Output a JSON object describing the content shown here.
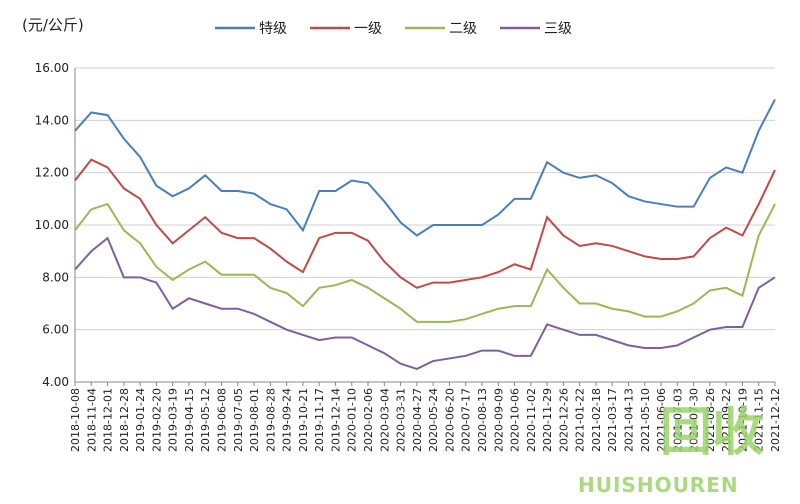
{
  "chart_data": {
    "type": "line",
    "y_unit": "(元/公斤)",
    "legend": "top",
    "grid": true,
    "categories": [
      "2018-10-08",
      "2018-11-04",
      "2018-12-01",
      "2018-12-28",
      "2019-01-24",
      "2019-02-20",
      "2019-03-19",
      "2019-04-15",
      "2019-05-12",
      "2019-06-08",
      "2019-07-05",
      "2019-08-01",
      "2019-08-28",
      "2019-09-24",
      "2019-10-21",
      "2019-11-17",
      "2019-12-14",
      "2020-01-10",
      "2020-02-06",
      "2020-03-04",
      "2020-03-31",
      "2020-04-27",
      "2020-05-24",
      "2020-06-20",
      "2020-07-17",
      "2020-08-13",
      "2020-09-09",
      "2020-10-06",
      "2020-11-02",
      "2020-11-29",
      "2020-12-26",
      "2021-01-22",
      "2021-02-18",
      "2021-03-17",
      "2021-04-13",
      "2021-05-10",
      "2021-06-06",
      "2021-07-03",
      "2021-07-30",
      "2021-08-26",
      "2021-09-22",
      "2021-10-19",
      "2021-11-15",
      "2021-12-12"
    ],
    "series": [
      {
        "name": "特级",
        "color": "#4a7ebb",
        "values": [
          13.6,
          14.3,
          14.2,
          13.3,
          12.6,
          11.5,
          11.1,
          11.4,
          11.9,
          11.3,
          11.3,
          11.2,
          10.8,
          10.6,
          9.8,
          11.3,
          11.3,
          11.7,
          11.6,
          10.9,
          10.1,
          9.6,
          10.0,
          10.0,
          10.0,
          10.0,
          10.4,
          11.0,
          11.0,
          12.4,
          12.0,
          11.8,
          11.9,
          11.6,
          11.1,
          10.9,
          10.8,
          10.7,
          10.7,
          11.8,
          12.2,
          12.0,
          13.6,
          14.8
        ]
      },
      {
        "name": "一级",
        "color": "#be4b48",
        "values": [
          11.7,
          12.5,
          12.2,
          11.4,
          11.0,
          10.0,
          9.3,
          9.8,
          10.3,
          9.7,
          9.5,
          9.5,
          9.1,
          8.6,
          8.2,
          9.5,
          9.7,
          9.7,
          9.4,
          8.6,
          8.0,
          7.6,
          7.8,
          7.8,
          7.9,
          8.0,
          8.2,
          8.5,
          8.3,
          10.3,
          9.6,
          9.2,
          9.3,
          9.2,
          9.0,
          8.8,
          8.7,
          8.7,
          8.8,
          9.5,
          9.9,
          9.6,
          10.8,
          12.1
        ]
      },
      {
        "name": "二级",
        "color": "#98b954",
        "values": [
          9.8,
          10.6,
          10.8,
          9.8,
          9.3,
          8.4,
          7.9,
          8.3,
          8.6,
          8.1,
          8.1,
          8.1,
          7.6,
          7.4,
          6.9,
          7.6,
          7.7,
          7.9,
          7.6,
          7.2,
          6.8,
          6.3,
          6.3,
          6.3,
          6.4,
          6.6,
          6.8,
          6.9,
          6.9,
          8.3,
          7.6,
          7.0,
          7.0,
          6.8,
          6.7,
          6.5,
          6.5,
          6.7,
          7.0,
          7.5,
          7.6,
          7.3,
          9.6,
          10.8
        ]
      },
      {
        "name": "三级",
        "color": "#7d60a0",
        "values": [
          8.3,
          9.0,
          9.5,
          8.0,
          8.0,
          7.8,
          6.8,
          7.2,
          7.0,
          6.8,
          6.8,
          6.6,
          6.3,
          6.0,
          5.8,
          5.6,
          5.7,
          5.7,
          5.4,
          5.1,
          4.7,
          4.5,
          4.8,
          4.9,
          5.0,
          5.2,
          5.2,
          5.0,
          5.0,
          6.2,
          6.0,
          5.8,
          5.8,
          5.6,
          5.4,
          5.3,
          5.3,
          5.4,
          5.7,
          6.0,
          6.1,
          6.1,
          7.6,
          8.0
        ]
      }
    ],
    "ylim": [
      4,
      16
    ],
    "yticks": [
      {
        "value": 4,
        "label": "4.00"
      },
      {
        "value": 6,
        "label": "6.00"
      },
      {
        "value": 8,
        "label": "8.00"
      },
      {
        "value": 10,
        "label": "10.00"
      },
      {
        "value": 12,
        "label": "12.00"
      },
      {
        "value": 14,
        "label": "14.00"
      },
      {
        "value": 16,
        "label": "16.00"
      }
    ]
  },
  "watermark": {
    "text": "回收",
    "subtext": "HUISHOUREN"
  }
}
